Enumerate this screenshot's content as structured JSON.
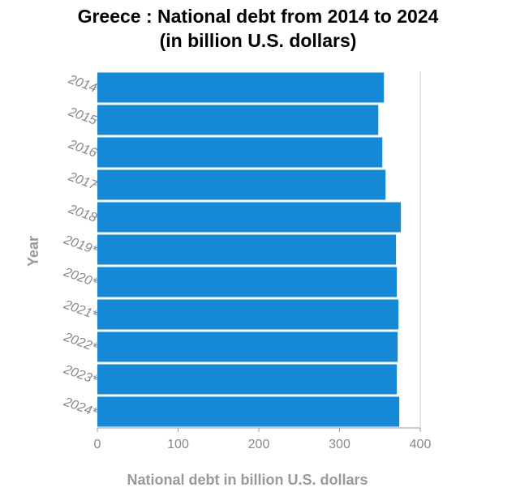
{
  "chart_data": {
    "type": "bar",
    "orientation": "horizontal",
    "title_line1": "Greece : National debt from 2014 to 2024",
    "title_line2": "(in billion U.S. dollars)",
    "xlabel": "National debt in billion U.S. dollars",
    "ylabel": "Year",
    "xlim": [
      0,
      400
    ],
    "xticks": [
      "0",
      "100",
      "200",
      "300",
      "400"
    ],
    "categories": [
      "2014",
      "2015",
      "2016",
      "2017",
      "2018",
      "2019*",
      "2020*",
      "2021*",
      "2022*",
      "2023*",
      "2024*"
    ],
    "values": [
      355,
      348,
      353,
      357,
      376,
      370,
      371,
      373,
      372,
      371,
      374
    ],
    "bar_color": "#1589d6",
    "grid": false
  }
}
